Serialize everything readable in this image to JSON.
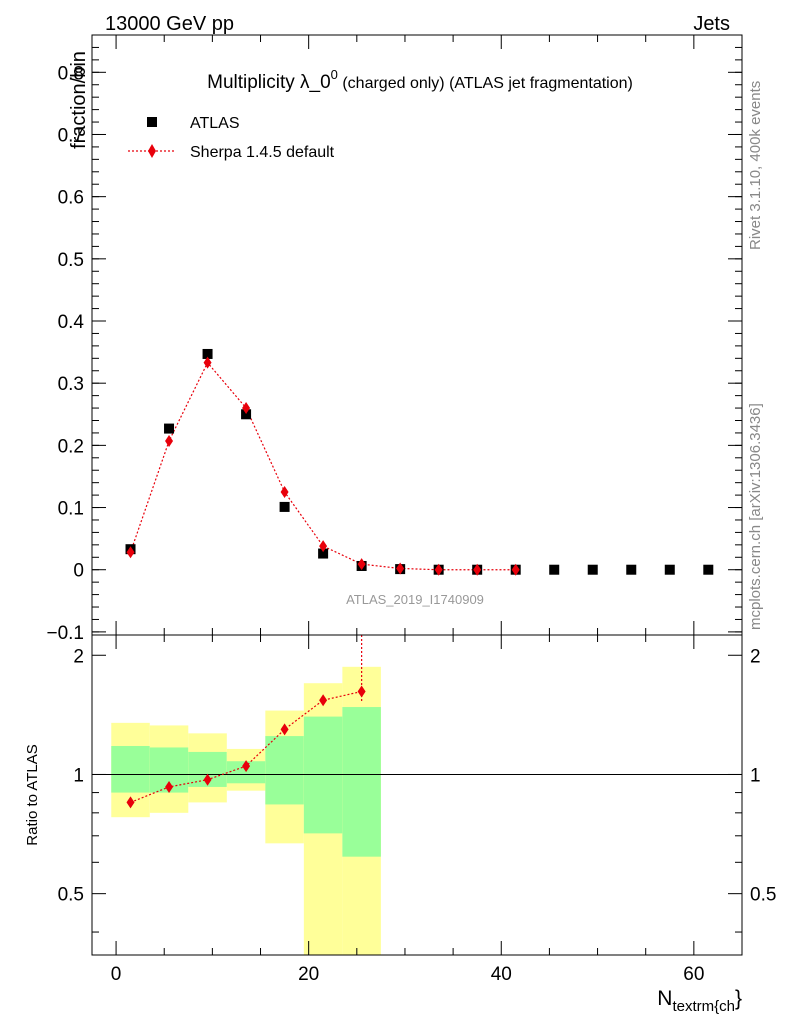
{
  "header": {
    "left": "13000 GeV pp",
    "right": "Jets"
  },
  "side_labels": {
    "rivet": "Rivet 3.1.10,  400k events",
    "mcplots": "mcplots.cern.ch [arXiv:1306.3436]"
  },
  "chart_data": [
    {
      "type": "scatter",
      "title": "Multiplicity λ_0",
      "title_sup": "0",
      "title_suffix": " (charged only) (ATLAS jet fragmentation)",
      "ylabel": "fraction/bin",
      "analysis_label": "ATLAS_2019_I1740909",
      "xlim": [
        -2.5,
        65
      ],
      "ylim": [
        -0.105,
        0.86
      ],
      "y_ticks": [
        -0.1,
        0,
        0.1,
        0.2,
        0.3,
        0.4,
        0.5,
        0.6,
        0.7,
        0.8
      ],
      "y_tick_labels": [
        "−0.1",
        "0",
        "0.1",
        "0.2",
        "0.3",
        "0.4",
        "0.5",
        "0.6",
        "0.7",
        "0.8"
      ],
      "legend_position": "top-left",
      "series": [
        {
          "name": "ATLAS",
          "marker": "square",
          "color": "#000000",
          "x": [
            1.5,
            5.5,
            9.5,
            13.5,
            17.5,
            21.5,
            25.5,
            29.5,
            33.5,
            37.5,
            41.5,
            45.5,
            49.5,
            53.5,
            57.5,
            61.5
          ],
          "y": [
            0.033,
            0.227,
            0.347,
            0.25,
            0.101,
            0.026,
            0.006,
            0.001,
            0.0,
            0.0,
            0.0,
            0.0,
            0.0,
            0.0,
            0.0,
            0.0
          ]
        },
        {
          "name": "Sherpa 1.4.5 default",
          "marker": "diamond",
          "line": "dotted",
          "color": "#e8000b",
          "x": [
            1.5,
            5.5,
            9.5,
            13.5,
            17.5,
            21.5,
            25.5,
            29.5,
            33.5,
            37.5,
            41.5
          ],
          "y": [
            0.028,
            0.207,
            0.333,
            0.26,
            0.125,
            0.038,
            0.009,
            0.002,
            0.0,
            0.0,
            0.0
          ]
        }
      ]
    },
    {
      "type": "line",
      "ylabel": "Ratio to ATLAS",
      "xlabel": "N",
      "xlabel_sub": "textrm{ch",
      "xlabel_suffix": "}",
      "xlim": [
        -2.5,
        65
      ],
      "ylim": [
        0.35,
        2.25
      ],
      "x_ticks": [
        0,
        20,
        40,
        60
      ],
      "x_tick_labels": [
        "0",
        "20",
        "40",
        "60"
      ],
      "y_ticks": [
        0.5,
        1,
        2
      ],
      "y_tick_labels": [
        "0.5",
        "1",
        "2"
      ],
      "reference_line": 1,
      "bands": [
        {
          "x0": -0.5,
          "x1": 3.5,
          "yellow": [
            0.78,
            1.35
          ],
          "green": [
            0.9,
            1.18
          ]
        },
        {
          "x0": 3.5,
          "x1": 7.5,
          "yellow": [
            0.8,
            1.33
          ],
          "green": [
            0.9,
            1.17
          ]
        },
        {
          "x0": 7.5,
          "x1": 11.5,
          "yellow": [
            0.85,
            1.27
          ],
          "green": [
            0.93,
            1.14
          ]
        },
        {
          "x0": 11.5,
          "x1": 15.5,
          "yellow": [
            0.91,
            1.16
          ],
          "green": [
            0.95,
            1.08
          ]
        },
        {
          "x0": 15.5,
          "x1": 19.5,
          "yellow": [
            0.67,
            1.45
          ],
          "green": [
            0.84,
            1.25
          ]
        },
        {
          "x0": 19.5,
          "x1": 23.5,
          "yellow": [
            0.3,
            1.7
          ],
          "green": [
            0.71,
            1.4
          ]
        },
        {
          "x0": 23.5,
          "x1": 27.5,
          "yellow": [
            0.3,
            1.87
          ],
          "green": [
            0.62,
            1.48
          ]
        }
      ],
      "series": [
        {
          "name": "Sherpa 1.4.5 default",
          "color": "#e8000b",
          "x": [
            1.5,
            5.5,
            9.5,
            13.5,
            17.5,
            21.5,
            25.5
          ],
          "y": [
            0.85,
            0.93,
            0.97,
            1.05,
            1.3,
            1.54,
            1.62
          ],
          "err_up": [
            0,
            0,
            0,
            0,
            0,
            0,
            1.0
          ],
          "err_down": [
            0,
            0,
            0,
            0,
            0,
            0,
            0.1
          ]
        }
      ]
    }
  ]
}
